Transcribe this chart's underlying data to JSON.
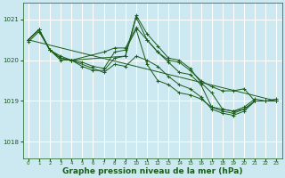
{
  "bg_color": "#cce8f0",
  "grid_color": "#ffffff",
  "line_color": "#1a5c1a",
  "xlabel": "Graphe pression niveau de la mer (hPa)",
  "xlabel_fontsize": 6.5,
  "yticks": [
    1018,
    1019,
    1020,
    1021
  ],
  "xticks": [
    0,
    1,
    2,
    3,
    4,
    5,
    6,
    7,
    8,
    9,
    10,
    11,
    12,
    13,
    14,
    15,
    16,
    17,
    18,
    19,
    20,
    21,
    22,
    23
  ],
  "xlim": [
    -0.5,
    23.5
  ],
  "ylim": [
    1017.6,
    1021.4
  ],
  "lines": [
    {
      "x": [
        0,
        1,
        2,
        3,
        4,
        5,
        6,
        7,
        8,
        9,
        10,
        11,
        12,
        13,
        14,
        15,
        16,
        17,
        18,
        19,
        20,
        21,
        22,
        23
      ],
      "y": [
        1020.5,
        1020.75,
        1020.25,
        1020.05,
        1020.0,
        1019.85,
        1019.75,
        1019.75,
        1020.05,
        1020.1,
        1021.05,
        1020.5,
        1020.2,
        1020.0,
        1019.95,
        1019.75,
        1019.5,
        1019.35,
        1019.25,
        1019.25,
        1019.3,
        1019.0,
        1019.0,
        1019.0
      ]
    },
    {
      "x": [
        0,
        1,
        2,
        3,
        4,
        9,
        10,
        11,
        12,
        13,
        14,
        15,
        16,
        17,
        18,
        19,
        20,
        21,
        22,
        23
      ],
      "y": [
        1020.5,
        1020.75,
        1020.25,
        1020.05,
        1020.0,
        1020.1,
        1021.1,
        1020.65,
        1020.35,
        1020.05,
        1020.0,
        1019.8,
        1019.45,
        1019.2,
        1018.8,
        1018.75,
        1018.85,
        1019.05,
        1019.0,
        1019.05
      ]
    },
    {
      "x": [
        0,
        1,
        2,
        3,
        4,
        7,
        8,
        9,
        10,
        11,
        12,
        13,
        14,
        15,
        16,
        17,
        18,
        19,
        20,
        21,
        22,
        23
      ],
      "y": [
        1020.5,
        1020.75,
        1020.25,
        1020.05,
        1020.0,
        1020.2,
        1020.3,
        1020.3,
        1020.8,
        1020.5,
        1020.2,
        1019.95,
        1019.7,
        1019.65,
        1019.4,
        1018.85,
        1018.75,
        1018.7,
        1018.8,
        1019.0,
        1019.0,
        1019.0
      ]
    },
    {
      "x": [
        0,
        1,
        2,
        3,
        4,
        7,
        8,
        9,
        10,
        11,
        12,
        13,
        14,
        15,
        16,
        17,
        18,
        19,
        20,
        21,
        22,
        23
      ],
      "y": [
        1020.5,
        1020.75,
        1020.25,
        1020.0,
        1020.0,
        1019.7,
        1019.9,
        1019.85,
        1020.1,
        1020.0,
        1019.85,
        1019.6,
        1019.4,
        1019.3,
        1019.1,
        1018.8,
        1018.7,
        1018.65,
        1018.75,
        1019.0,
        1019.0,
        1019.0
      ]
    },
    {
      "x": [
        0,
        1,
        2,
        3,
        4,
        5,
        6,
        7,
        8,
        9,
        10,
        11,
        12,
        13,
        14,
        15,
        16,
        17,
        18,
        19,
        20,
        21,
        22,
        23
      ],
      "y": [
        1020.45,
        1020.7,
        1020.25,
        1020.1,
        1020.0,
        1019.95,
        1019.85,
        1019.8,
        1020.2,
        1020.25,
        1020.75,
        1019.9,
        1019.5,
        1019.4,
        1019.2,
        1019.15,
        1019.05,
        1018.85,
        1018.8,
        1018.75,
        1018.8,
        1019.0,
        1019.0,
        1019.0
      ]
    }
  ],
  "straight_line": {
    "x": [
      0,
      23
    ],
    "y": [
      1020.5,
      1019.0
    ]
  }
}
